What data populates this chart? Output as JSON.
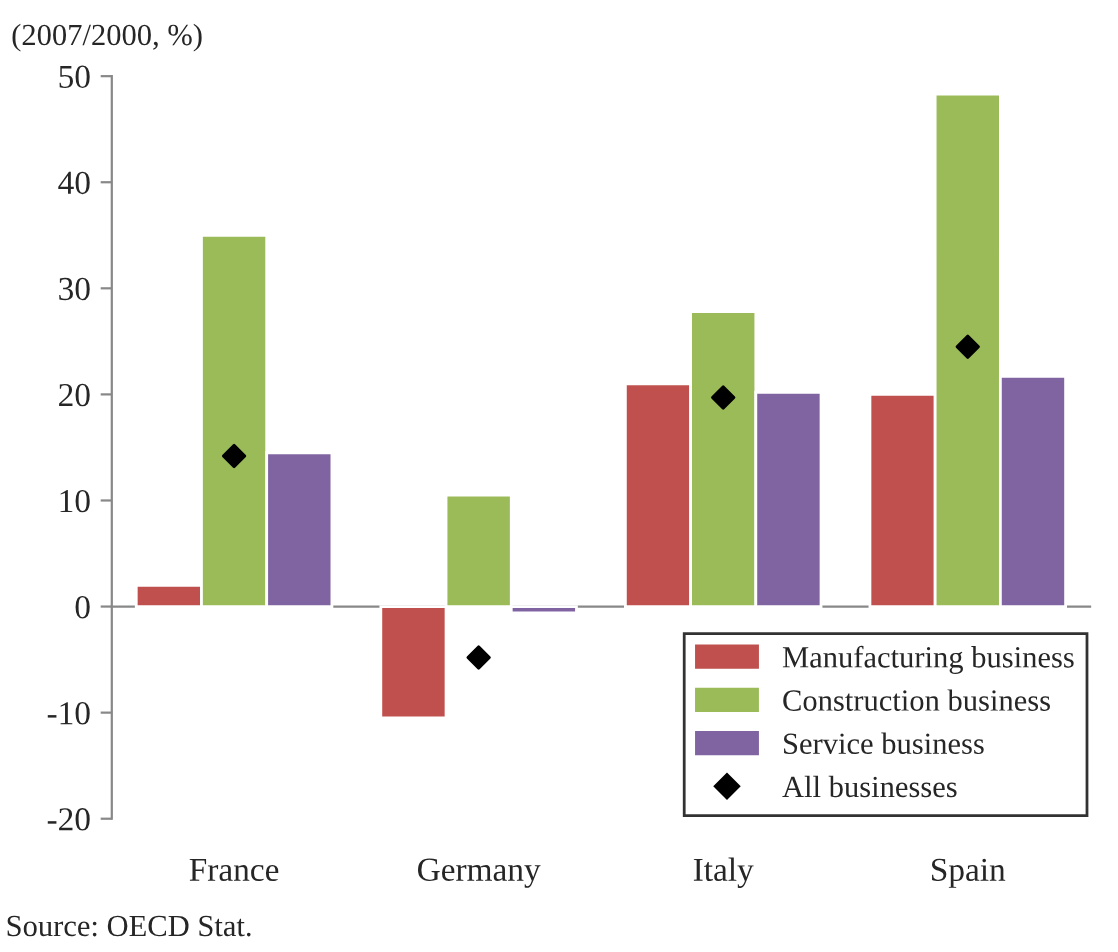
{
  "chart_data": {
    "type": "bar",
    "ylabel": "(2007/2000, %)",
    "categories": [
      "France",
      "Germany",
      "Italy",
      "Spain"
    ],
    "series": [
      {
        "name": "Manufacturing business",
        "color": "#c0504d",
        "values": [
          2,
          -10.5,
          21,
          20
        ]
      },
      {
        "name": "Construction business",
        "color": "#9bbb59",
        "values": [
          35,
          10.5,
          27.8,
          48.3
        ]
      },
      {
        "name": "Service business",
        "color": "#8064a2",
        "values": [
          14.5,
          -0.6,
          20.2,
          21.7
        ]
      },
      {
        "name": "All businesses",
        "type": "scatter",
        "color": "#000000",
        "marker": "diamond",
        "values": [
          14.2,
          -4.8,
          19.7,
          24.5
        ]
      }
    ],
    "ylim": [
      -20,
      50
    ],
    "yticks": [
      -20,
      -10,
      0,
      10,
      20,
      30,
      40,
      50
    ],
    "legend": "bottom right",
    "annotations": [
      "Source: OECD Stat."
    ]
  }
}
